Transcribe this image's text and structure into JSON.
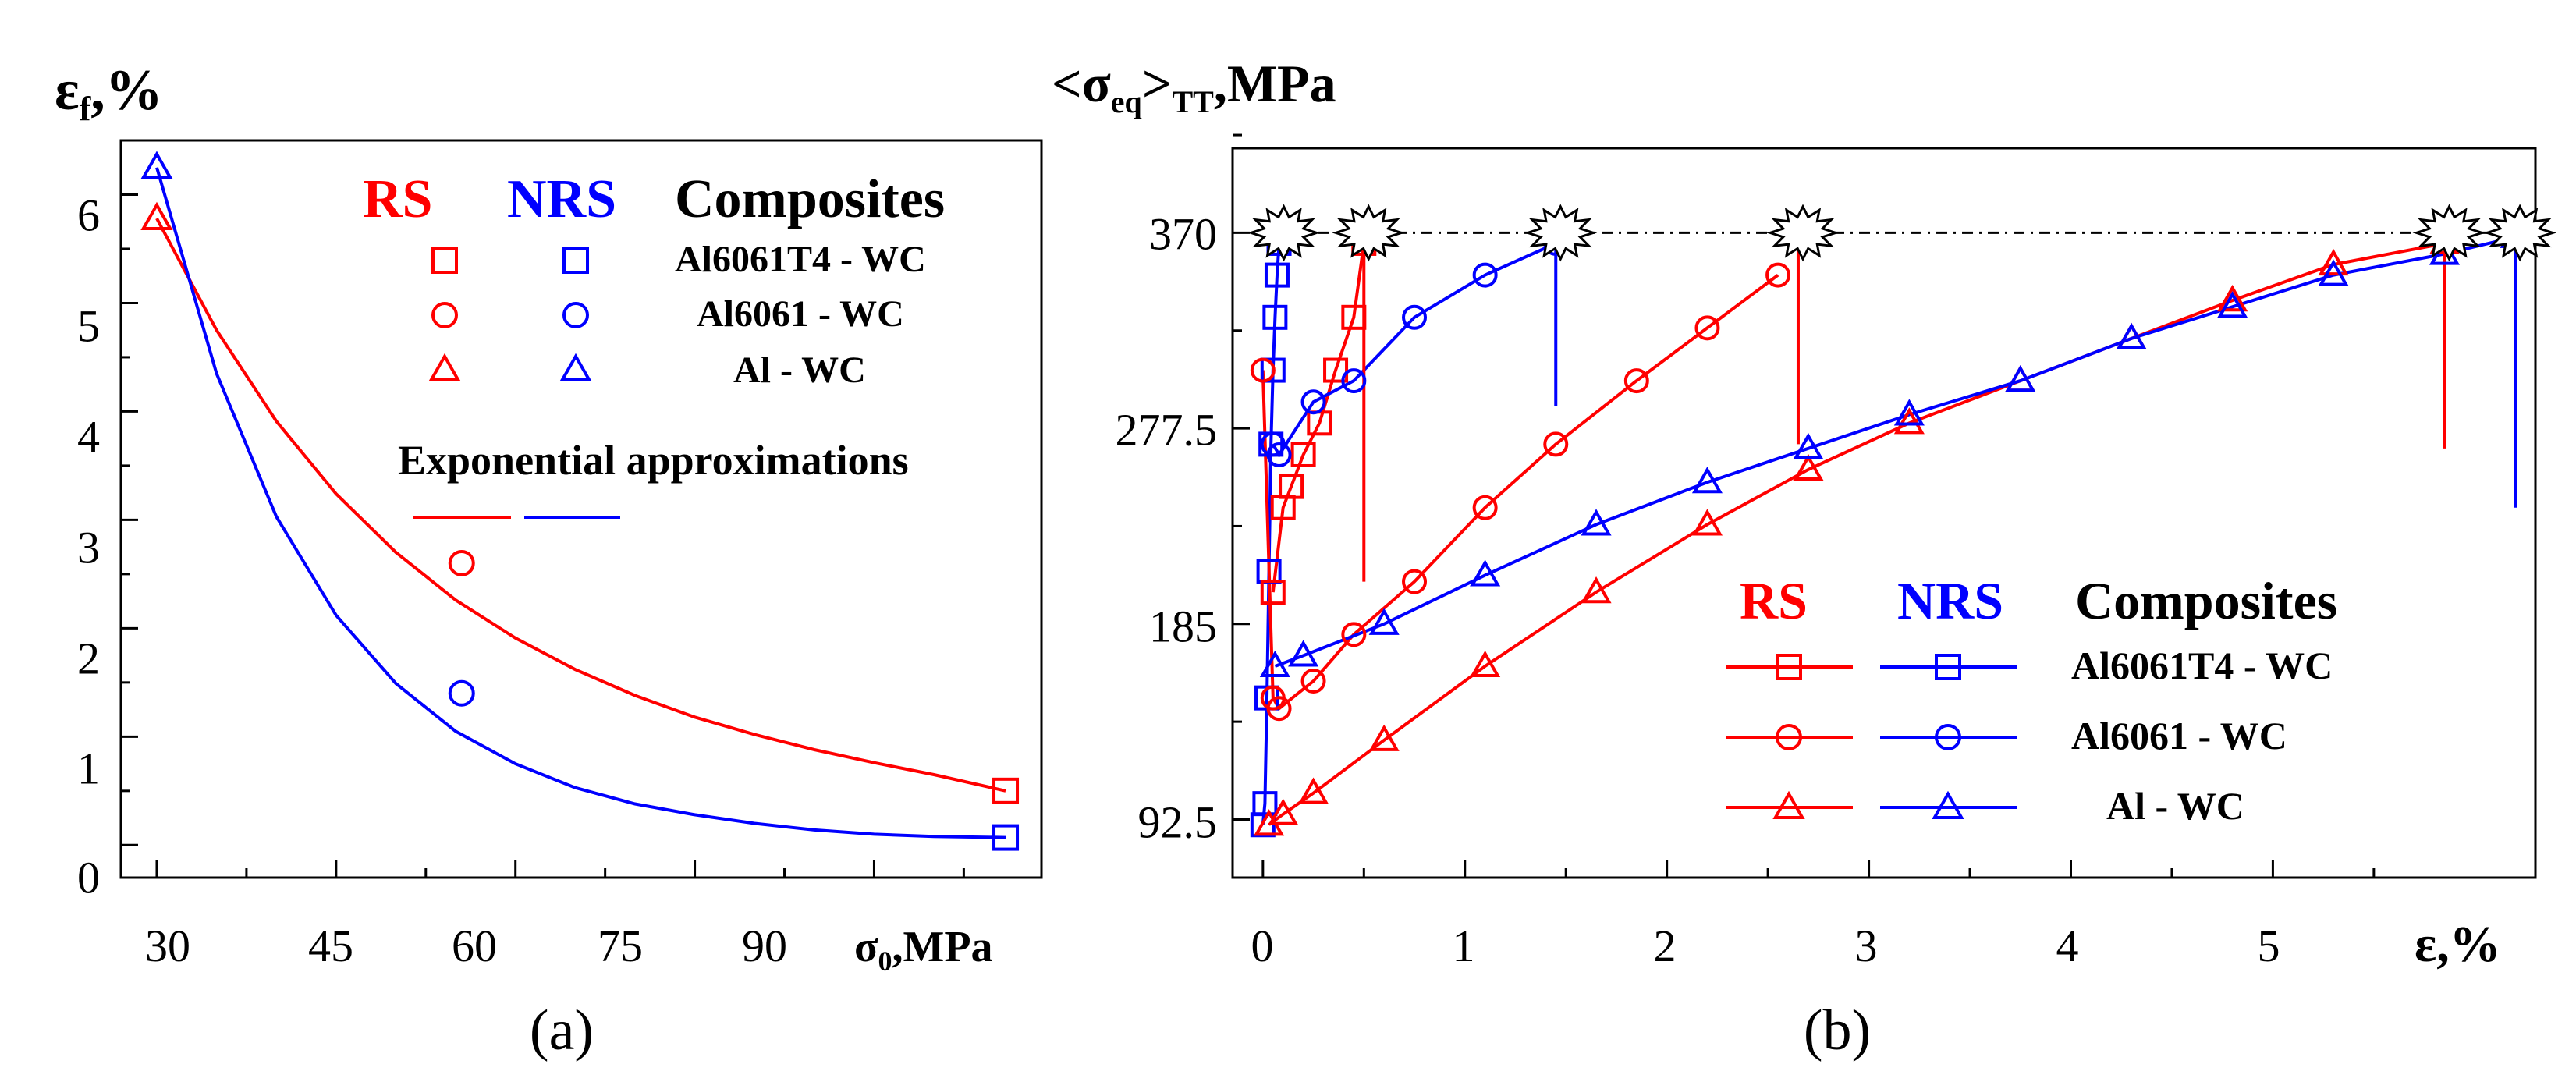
{
  "colors": {
    "rs": "#ff0000",
    "nrs": "#0000ff",
    "ink": "#000000"
  },
  "chart_data": [
    {
      "panel": "a",
      "type": "scatter",
      "panel_label": "(a)",
      "ylabel_main": "ε",
      "ylabel_sub": "f",
      "ylabel_unit": ",%",
      "xlabel_main": "σ",
      "xlabel_sub": "0",
      "xlabel_unit": ",MPa",
      "xlim": [
        27,
        104
      ],
      "ylim": [
        -0.3,
        6.5
      ],
      "xticks": [
        30,
        45,
        60,
        75,
        90
      ],
      "xtick_labels": [
        "30",
        "45",
        "60",
        "75",
        "90"
      ],
      "yticks": [
        0,
        1,
        2,
        3,
        4,
        5,
        6
      ],
      "ytick_labels": [
        "0",
        "1",
        "2",
        "3",
        "4",
        "5",
        "6"
      ],
      "legend": {
        "rs_label": "RS",
        "nrs_label": "NRS",
        "header": "Composites",
        "entries": [
          "Al6061T4 - WC",
          "Al6061 - WC",
          "Al - WC"
        ],
        "approx_label": "Exponential approximations"
      },
      "series": [
        {
          "name": "RS Al6061T4 - WC",
          "group": "rs",
          "marker": "square",
          "x": [
            101
          ],
          "y": [
            0.5
          ]
        },
        {
          "name": "RS Al6061 - WC",
          "group": "rs",
          "marker": "circle",
          "x": [
            55.5
          ],
          "y": [
            2.6
          ]
        },
        {
          "name": "RS Al - WC",
          "group": "rs",
          "marker": "triangle",
          "x": [
            30
          ],
          "y": [
            5.78
          ]
        },
        {
          "name": "NRS Al6061T4 - WC",
          "group": "nrs",
          "marker": "square",
          "x": [
            101
          ],
          "y": [
            0.07
          ]
        },
        {
          "name": "NRS Al6061 - WC",
          "group": "nrs",
          "marker": "circle",
          "x": [
            55.5
          ],
          "y": [
            1.4
          ]
        },
        {
          "name": "NRS Al - WC",
          "group": "nrs",
          "marker": "triangle",
          "x": [
            30
          ],
          "y": [
            6.25
          ]
        }
      ],
      "fits": [
        {
          "name": "RS exponential approximation",
          "group": "rs",
          "x": [
            30,
            35,
            40,
            45,
            50,
            55,
            60,
            65,
            70,
            75,
            80,
            85,
            90,
            95,
            101
          ],
          "y": [
            5.78,
            4.75,
            3.91,
            3.24,
            2.7,
            2.26,
            1.91,
            1.62,
            1.38,
            1.18,
            1.02,
            0.88,
            0.76,
            0.65,
            0.5
          ]
        },
        {
          "name": "NRS exponential approximation",
          "group": "nrs",
          "x": [
            30,
            35,
            40,
            45,
            50,
            55,
            60,
            65,
            70,
            75,
            80,
            85,
            90,
            95,
            101
          ],
          "y": [
            6.25,
            4.35,
            3.03,
            2.12,
            1.49,
            1.05,
            0.75,
            0.53,
            0.38,
            0.28,
            0.2,
            0.14,
            0.1,
            0.08,
            0.07
          ]
        }
      ]
    },
    {
      "panel": "b",
      "type": "line",
      "panel_label": "(b)",
      "ylabel_prefix": "<σ",
      "ylabel_sub1": "eq",
      "ylabel_mid": ">",
      "ylabel_sub2": "TT",
      "ylabel_unit": ",MPa",
      "xlabel": "ε,%",
      "xlim": [
        -0.15,
        6.3
      ],
      "ylim": [
        65,
        410
      ],
      "xticks": [
        0,
        1,
        2,
        3,
        4,
        5
      ],
      "xtick_labels": [
        "0",
        "1",
        "2",
        "3",
        "4",
        "5"
      ],
      "yticks": [
        92.5,
        185,
        277.5,
        370
      ],
      "ytick_labels": [
        "92.5",
        "185",
        "277.5",
        "370"
      ],
      "dash_level": 370,
      "legend": {
        "rs_label": "RS",
        "nrs_label": "NRS",
        "header": "Composites",
        "entries": [
          "Al6061T4 - WC",
          "Al6061 - WC",
          "Al - WC"
        ]
      },
      "failure_points": [
        {
          "group": "nrs",
          "x": 0.08,
          "drop_to": 365
        },
        {
          "group": "rs",
          "x": 0.5,
          "drop_to": 205
        },
        {
          "group": "nrs",
          "x": 1.45,
          "drop_to": 288
        },
        {
          "group": "rs",
          "x": 2.65,
          "drop_to": 270
        },
        {
          "group": "rs",
          "x": 5.85,
          "drop_to": 268
        },
        {
          "group": "nrs",
          "x": 6.2,
          "drop_to": 240
        }
      ],
      "series": [
        {
          "name": "NRS Al6061T4 - WC",
          "group": "nrs",
          "marker": "square",
          "x": [
            0.0,
            0.01,
            0.02,
            0.03,
            0.04,
            0.05,
            0.06,
            0.07,
            0.08
          ],
          "y": [
            90,
            100,
            150,
            210,
            270,
            305,
            330,
            350,
            365
          ]
        },
        {
          "name": "RS Al6061T4 - WC",
          "group": "rs",
          "marker": "square",
          "x": [
            0.05,
            0.1,
            0.14,
            0.2,
            0.28,
            0.36,
            0.45,
            0.5
          ],
          "y": [
            200,
            240,
            250,
            265,
            280,
            305,
            330,
            365
          ]
        },
        {
          "name": "RS Al6061 - WC",
          "group": "rs",
          "marker": "circle",
          "x": [
            0.0,
            0.05,
            0.08,
            0.25,
            0.45,
            0.75,
            1.1,
            1.45,
            1.85,
            2.2,
            2.55
          ],
          "y": [
            305,
            150,
            145,
            158,
            180,
            205,
            240,
            270,
            300,
            325,
            350
          ]
        },
        {
          "name": "NRS Al6061 - WC",
          "group": "nrs",
          "marker": "circle",
          "x": [
            0.05,
            0.08,
            0.25,
            0.45,
            0.75,
            1.1,
            1.45
          ],
          "y": [
            270,
            265,
            290,
            300,
            330,
            350,
            365
          ]
        },
        {
          "name": "RS Al - WC",
          "group": "rs",
          "marker": "triangle",
          "x": [
            0.03,
            0.1,
            0.25,
            0.6,
            1.1,
            1.65,
            2.2,
            2.7,
            3.2,
            3.75,
            4.3,
            4.8,
            5.3,
            5.85
          ],
          "y": [
            90,
            95,
            105,
            130,
            165,
            200,
            232,
            258,
            280,
            300,
            320,
            338,
            355,
            365
          ]
        },
        {
          "name": "NRS Al - WC",
          "group": "nrs",
          "marker": "triangle",
          "x": [
            0.06,
            0.2,
            0.6,
            1.1,
            1.65,
            2.2,
            2.7,
            3.2,
            3.75,
            4.3,
            4.8,
            5.3,
            5.85,
            6.2
          ],
          "y": [
            165,
            170,
            185,
            208,
            232,
            252,
            268,
            284,
            300,
            320,
            335,
            350,
            360,
            368
          ]
        }
      ]
    }
  ]
}
